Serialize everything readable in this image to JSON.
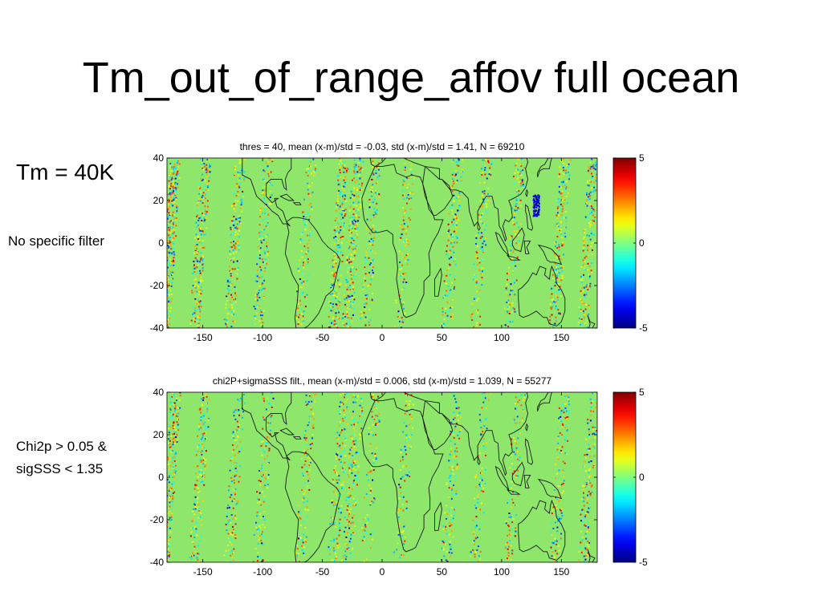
{
  "slide": {
    "title": "Tm_out_of_range_affov full ocean",
    "labels": {
      "tm": "Tm = 40K",
      "no_filter": "No specific  filter",
      "chi2p": "Chi2p > 0.05 &",
      "sigsss": "sigSSS < 1.35"
    }
  },
  "chart_data": [
    {
      "type": "heatmap",
      "title": "thres = 40, mean (x-m)/std = -0.03, std (x-m)/std = 1.41, N = 69210",
      "xlim": [
        -180,
        180
      ],
      "ylim": [
        -40,
        40
      ],
      "xticks": [
        -150,
        -100,
        -50,
        0,
        50,
        100,
        150
      ],
      "yticks": [
        40,
        20,
        0,
        -20,
        -40
      ],
      "colorbar": {
        "colormap": "jet",
        "range": [
          -5,
          5
        ],
        "ticks": [
          5,
          0,
          -5
        ]
      },
      "background_color": "#8ee66a",
      "coastlines": true
    },
    {
      "type": "heatmap",
      "title": "chi2P+sigmaSSS filt., mean (x-m)/std = 0.006, std (x-m)/std = 1.039, N = 55277",
      "xlim": [
        -180,
        180
      ],
      "ylim": [
        -40,
        40
      ],
      "xticks": [
        -150,
        -100,
        -50,
        0,
        50,
        100,
        150
      ],
      "yticks": [
        40,
        20,
        0,
        -20,
        -40
      ],
      "colorbar": {
        "colormap": "jet",
        "range": [
          -5,
          5
        ],
        "ticks": [
          5,
          0,
          -5
        ]
      },
      "background_color": "#8ee66a",
      "coastlines": true
    }
  ]
}
